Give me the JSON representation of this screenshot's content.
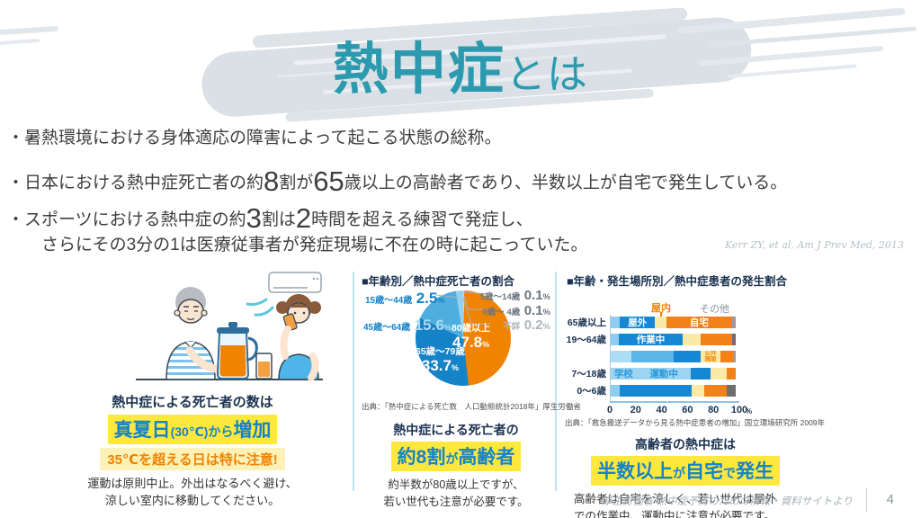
{
  "colors": {
    "accent_teal": "#2B9AAF",
    "highlight_yellow": "#FFE83D",
    "pale_yellow": "#FCF1B6",
    "blue": "#1583C8",
    "orange": "#F08300",
    "navy": "#1A3150"
  },
  "slide": {
    "title_main": "熱中症",
    "title_sub": "とは",
    "bullets": [
      {
        "runs": [
          {
            "t": "・暑熱環境における身体適応の障害によって起こる状態の総称。"
          }
        ]
      },
      {
        "runs": [
          {
            "t": "・日本における熱中症死亡者の約"
          },
          {
            "t": "8",
            "big": true
          },
          {
            "t": "割が"
          },
          {
            "t": "65",
            "big": true
          },
          {
            "t": "歳以上の高齢者であり、半数以上が自宅で発生している。"
          }
        ]
      },
      {
        "runs": [
          {
            "t": "・スポーツにおける熱中症の約"
          },
          {
            "t": "3",
            "big": true
          },
          {
            "t": "割は"
          },
          {
            "t": "2",
            "big": true
          },
          {
            "t": "時間を超える練習で発症し、"
          }
        ]
      },
      {
        "runs": [
          {
            "t": "さらにその3分の1は医療従事者が発症現場に不在の時に起こっていた。"
          }
        ]
      }
    ],
    "citation": "Kerr ZY, et al, Am J Prev Med, 2013",
    "footer_source": "厚生労働省 熱中症予防のための情報・資料サイトより",
    "footer_page": "4"
  },
  "left_panel": {
    "illustration": "elderly-man-and-girl-drinking-under-air-conditioner",
    "headline": "熱中症による死亡者の数は",
    "highlight1_runs": [
      {
        "t": "真夏日",
        "big": true
      },
      {
        "t": "(30℃)"
      },
      {
        "t": "から"
      },
      {
        "t": "増加",
        "big": true
      }
    ],
    "highlight2": "35℃を超える日は特に注意!",
    "body_line1": "運動は原則中止。外出はなるべく避け、",
    "body_line2": "涼しい室内に移動してください。"
  },
  "pie_panel": {
    "title": "■年齢別／熱中症死亡者の割合",
    "labels": {
      "l1_age": "15歳〜44歳",
      "l1_val": "2.5",
      "l1_unit": "%",
      "l2_age": "45歳〜64歳",
      "l2_val": "15.6",
      "l2_unit": "%",
      "r1_age": "5歳〜14歳",
      "r1_val": "0.1",
      "r1_unit": "%",
      "r2_age": "0歳〜 4歳",
      "r2_val": "0.1",
      "r2_unit": "%",
      "r3_age": "不詳",
      "r3_val": "0.2",
      "r3_unit": "%",
      "p1_age": "80歳以上",
      "p1_val": "47.8",
      "p1_unit": "%",
      "p2_age": "65歳〜79歳",
      "p2_val": "33.7",
      "p2_unit": "%"
    },
    "source": "出典：「熱中症による死亡数　人口動態統計2018年」厚生労働省",
    "headline": "熱中症による死亡者の",
    "highlight_runs": [
      {
        "t": "約8割",
        "big": true
      },
      {
        "t": "が"
      },
      {
        "t": "高齢者",
        "big": true
      }
    ],
    "body_line1": "約半数が80歳以上ですが、",
    "body_line2": "若い世代も注意が必要です。"
  },
  "bar_panel": {
    "title": "■年齢・発生場所別／熱中症患者の発生割合",
    "annotation_indoor": "屋内",
    "annotation_other": "その他",
    "source": "出典：「救急搬送データから見る熱中症患者の増加」国立環境研究所 2009年",
    "headline": "高齢者の熱中症は",
    "highlight_runs": [
      {
        "t": "半数以上",
        "big": true
      },
      {
        "t": "が"
      },
      {
        "t": "自宅",
        "big": true
      },
      {
        "t": "で"
      },
      {
        "t": "発生",
        "big": true
      }
    ],
    "body_line1": "高齢者は自宅を涼しく、若い世代は屋外",
    "body_line2": "での作業中、運動中に注意が必要です。"
  },
  "chart_data": [
    {
      "type": "pie",
      "title": "年齢別／熱中症死亡者の割合",
      "source": "出典：「熱中症による死亡数　人口動態統計2018年」厚生労働省",
      "slices": [
        {
          "label": "5歳〜14歳",
          "value": 0.1,
          "color": "#BCE2F5"
        },
        {
          "label": "0歳〜 4歳",
          "value": 0.1,
          "color": "#D6EDFA"
        },
        {
          "label": "不詳",
          "value": 0.2,
          "color": "#C2C7CB"
        },
        {
          "label": "80歳以上",
          "value": 47.8,
          "color": "#F08300"
        },
        {
          "label": "65歳〜79歳",
          "value": 33.7,
          "color": "#1583C8"
        },
        {
          "label": "45歳〜64歳",
          "value": 15.6,
          "color": "#4FADE0"
        },
        {
          "label": "15歳〜44歳",
          "value": 2.5,
          "color": "#93D2F0"
        }
      ]
    },
    {
      "type": "bar",
      "orientation": "horizontal-stacked",
      "title": "年齢・発生場所別／熱中症患者の発生割合",
      "source": "出典：「救急搬送データから見る熱中症患者の増加」国立環境研究所 2009年",
      "x_ticks": [
        "0",
        "20",
        "40",
        "60",
        "80",
        "100"
      ],
      "x_unit": "%",
      "xlim": [
        0,
        100
      ],
      "rows": [
        {
          "label": "65歳以上",
          "segments": [
            {
              "name": "",
              "value": 8,
              "color": "#8ECDF0"
            },
            {
              "name": "屋外",
              "value": 28,
              "color": "#1687D2",
              "text": "#ffffff"
            },
            {
              "name": "",
              "value": 9,
              "color": "#FBE9A6"
            },
            {
              "name": "自宅",
              "value": 52,
              "color": "#F08219",
              "text": "#ffffff"
            },
            {
              "name": "",
              "value": 3,
              "color": "#9B9B9B"
            }
          ]
        },
        {
          "label": "19〜64歳",
          "segments": [
            {
              "name": "",
              "value": 7,
              "color": "#8ECDF0"
            },
            {
              "name": "作業中",
              "value": 51,
              "color": "#1687D2",
              "text": "#ffffff"
            },
            {
              "name": "",
              "value": 14,
              "color": "#FBE9A6"
            },
            {
              "name": "",
              "value": 25,
              "color": "#F08219"
            },
            {
              "name": "",
              "value": 3,
              "color": "#6E6E6E"
            }
          ]
        },
        {
          "label": "",
          "segments": [
            {
              "name": "",
              "value": 17,
              "color": "#ADDCF5"
            },
            {
              "name": "",
              "value": 34,
              "color": "#5BB5E8"
            },
            {
              "name": "",
              "value": 21,
              "color": "#1687D2"
            },
            {
              "name": "公共施設",
              "value": 16,
              "color": "#FBE9A6",
              "text": "#F08300",
              "small": true
            },
            {
              "name": "",
              "value": 10,
              "color": "#F08219"
            },
            {
              "name": "",
              "value": 2,
              "color": "#9B9B9B"
            }
          ]
        },
        {
          "label": "7〜18歳",
          "segments": [
            {
              "name": "学校",
              "value": 22,
              "color": "#9DD4F2",
              "text": "#2B9AD8"
            },
            {
              "name": "運動中",
              "value": 42,
              "color": "#9DD4F2",
              "text": "#2B9AD8"
            },
            {
              "name": "",
              "value": 16,
              "color": "#1687D2"
            },
            {
              "name": "",
              "value": 13,
              "color": "#FBE9A6"
            },
            {
              "name": "",
              "value": 7,
              "color": "#F08219"
            }
          ]
        },
        {
          "label": "0〜6歳",
          "segments": [
            {
              "name": "",
              "value": 8,
              "color": "#8ECDF0"
            },
            {
              "name": "",
              "value": 57,
              "color": "#1687D2"
            },
            {
              "name": "",
              "value": 10,
              "color": "#FBE9A6"
            },
            {
              "name": "",
              "value": 18,
              "color": "#F08219"
            },
            {
              "name": "",
              "value": 7,
              "color": "#6E6E6E"
            }
          ]
        }
      ]
    }
  ]
}
